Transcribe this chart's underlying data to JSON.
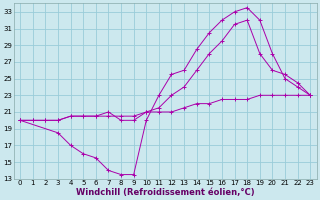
{
  "xlabel": "Windchill (Refroidissement éolien,°C)",
  "background_color": "#cce8ee",
  "grid_color": "#99ccd9",
  "line_color": "#aa00aa",
  "xlim": [
    -0.5,
    23.5
  ],
  "ylim": [
    13,
    34
  ],
  "yticks": [
    13,
    15,
    17,
    19,
    21,
    23,
    25,
    27,
    29,
    31,
    33
  ],
  "xticks": [
    0,
    1,
    2,
    3,
    4,
    5,
    6,
    7,
    8,
    9,
    10,
    11,
    12,
    13,
    14,
    15,
    16,
    17,
    18,
    19,
    20,
    21,
    22,
    23
  ],
  "line1_x": [
    0,
    1,
    2,
    3,
    4,
    5,
    6,
    7,
    8,
    9,
    10,
    11,
    12,
    13,
    14,
    15,
    16,
    17,
    18,
    19,
    20,
    21,
    22,
    23
  ],
  "line1_y": [
    20,
    20,
    20,
    20,
    20.5,
    20.5,
    20.5,
    20.5,
    20.5,
    20.5,
    21,
    21,
    21,
    21.5,
    22,
    22,
    22.5,
    22.5,
    22.5,
    23,
    23,
    23,
    23,
    23
  ],
  "line2_x": [
    0,
    3,
    4,
    5,
    6,
    7,
    8,
    9,
    10,
    11,
    12,
    13,
    14,
    15,
    16,
    17,
    18,
    19,
    20,
    21,
    22,
    23
  ],
  "line2_y": [
    20,
    18.5,
    17,
    16,
    15.5,
    14,
    13.5,
    13.5,
    20,
    23,
    25.5,
    26,
    28.5,
    30.5,
    32,
    33,
    33.5,
    32,
    28,
    25,
    24,
    23
  ],
  "line3_x": [
    0,
    1,
    2,
    3,
    4,
    5,
    6,
    7,
    8,
    9,
    10,
    11,
    12,
    13,
    14,
    15,
    16,
    17,
    18,
    19,
    20,
    21,
    22,
    23
  ],
  "line3_y": [
    20,
    20,
    20,
    20,
    20.5,
    20.5,
    20.5,
    21,
    20,
    20,
    21,
    21.5,
    23,
    24,
    26,
    28,
    29.5,
    31.5,
    32,
    28,
    26,
    25.5,
    24.5,
    23
  ],
  "xlabel_color": "#660066",
  "xlabel_fontsize": 6,
  "tick_fontsize": 5,
  "linewidth": 0.7,
  "markersize": 2.5
}
